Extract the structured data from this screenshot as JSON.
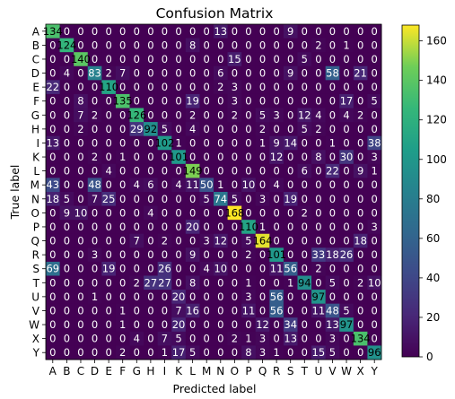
{
  "chart_data": {
    "type": "heatmap",
    "title": "Confusion Matrix",
    "xlabel": "Predicted label",
    "ylabel": "True label",
    "labels": [
      "A",
      "B",
      "C",
      "D",
      "E",
      "F",
      "G",
      "H",
      "I",
      "K",
      "L",
      "M",
      "N",
      "O",
      "P",
      "Q",
      "R",
      "S",
      "T",
      "U",
      "V",
      "W",
      "X",
      "Y"
    ],
    "colormap": "viridis",
    "colorbar": {
      "min": 0,
      "max": 168,
      "ticks": [
        0,
        20,
        40,
        60,
        80,
        100,
        120,
        140,
        160
      ]
    },
    "matrix": [
      [
        134,
        0,
        0,
        0,
        0,
        0,
        0,
        0,
        0,
        0,
        0,
        0,
        13,
        0,
        0,
        0,
        0,
        9,
        0,
        0,
        0,
        0,
        0,
        0
      ],
      [
        0,
        124,
        0,
        0,
        0,
        0,
        0,
        0,
        0,
        0,
        8,
        0,
        0,
        0,
        0,
        0,
        0,
        0,
        0,
        2,
        0,
        1,
        0,
        0
      ],
      [
        0,
        0,
        140,
        0,
        0,
        0,
        0,
        0,
        0,
        0,
        0,
        0,
        0,
        15,
        0,
        0,
        0,
        0,
        5,
        0,
        0,
        0,
        0,
        0
      ],
      [
        0,
        4,
        0,
        83,
        2,
        7,
        0,
        0,
        0,
        0,
        0,
        0,
        6,
        0,
        0,
        0,
        0,
        9,
        0,
        0,
        58,
        0,
        21,
        0
      ],
      [
        22,
        0,
        0,
        0,
        110,
        0,
        0,
        0,
        0,
        0,
        0,
        0,
        2,
        3,
        0,
        0,
        0,
        0,
        0,
        0,
        0,
        0,
        0,
        0
      ],
      [
        0,
        0,
        8,
        0,
        0,
        135,
        0,
        0,
        0,
        0,
        19,
        0,
        0,
        3,
        0,
        0,
        0,
        0,
        0,
        0,
        0,
        17,
        0,
        5
      ],
      [
        0,
        0,
        7,
        2,
        0,
        0,
        126,
        0,
        0,
        0,
        2,
        0,
        0,
        2,
        0,
        5,
        3,
        0,
        12,
        4,
        0,
        4,
        2,
        0
      ],
      [
        0,
        0,
        2,
        0,
        0,
        0,
        29,
        92,
        5,
        0,
        4,
        0,
        0,
        0,
        0,
        2,
        0,
        0,
        5,
        2,
        0,
        0,
        0,
        0
      ],
      [
        13,
        0,
        0,
        0,
        0,
        0,
        0,
        0,
        102,
        1,
        0,
        0,
        0,
        0,
        0,
        1,
        9,
        14,
        0,
        0,
        1,
        0,
        0,
        38
      ],
      [
        0,
        0,
        0,
        2,
        0,
        1,
        0,
        0,
        0,
        101,
        0,
        0,
        0,
        0,
        0,
        0,
        12,
        0,
        0,
        8,
        0,
        30,
        0,
        3
      ],
      [
        0,
        0,
        0,
        0,
        4,
        0,
        0,
        0,
        0,
        0,
        149,
        0,
        0,
        0,
        0,
        0,
        0,
        0,
        6,
        0,
        22,
        0,
        9,
        1
      ],
      [
        43,
        0,
        0,
        48,
        0,
        0,
        4,
        6,
        0,
        4,
        11,
        50,
        1,
        0,
        10,
        0,
        4,
        0,
        0,
        0,
        0,
        0,
        0,
        0
      ],
      [
        18,
        5,
        0,
        7,
        25,
        0,
        0,
        0,
        0,
        0,
        0,
        5,
        74,
        5,
        0,
        3,
        0,
        19,
        0,
        0,
        0,
        0,
        0,
        0
      ],
      [
        0,
        9,
        10,
        0,
        0,
        0,
        0,
        4,
        0,
        0,
        0,
        0,
        0,
        168,
        0,
        0,
        0,
        0,
        2,
        0,
        0,
        0,
        0,
        0
      ],
      [
        0,
        0,
        0,
        0,
        0,
        0,
        0,
        0,
        0,
        0,
        20,
        0,
        0,
        0,
        110,
        1,
        0,
        0,
        0,
        0,
        0,
        0,
        0,
        3
      ],
      [
        0,
        0,
        0,
        0,
        0,
        0,
        7,
        0,
        2,
        0,
        0,
        3,
        12,
        0,
        5,
        164,
        0,
        0,
        0,
        0,
        0,
        0,
        18,
        0
      ],
      [
        0,
        0,
        0,
        3,
        0,
        0,
        0,
        0,
        0,
        0,
        9,
        0,
        0,
        0,
        2,
        0,
        101,
        0,
        0,
        33,
        18,
        26,
        0,
        0
      ],
      [
        69,
        0,
        0,
        0,
        19,
        0,
        0,
        0,
        26,
        0,
        0,
        4,
        10,
        0,
        0,
        0,
        11,
        56,
        0,
        2,
        0,
        0,
        0,
        0
      ],
      [
        0,
        0,
        0,
        0,
        0,
        0,
        2,
        27,
        27,
        0,
        8,
        0,
        0,
        0,
        1,
        0,
        0,
        1,
        94,
        0,
        5,
        0,
        2,
        10
      ],
      [
        0,
        0,
        0,
        1,
        0,
        0,
        0,
        0,
        0,
        20,
        0,
        0,
        0,
        0,
        3,
        0,
        56,
        0,
        0,
        97,
        0,
        0,
        0,
        0
      ],
      [
        0,
        0,
        0,
        0,
        0,
        1,
        0,
        0,
        0,
        7,
        16,
        0,
        0,
        0,
        11,
        0,
        56,
        0,
        0,
        11,
        48,
        5,
        0,
        0
      ],
      [
        0,
        0,
        0,
        0,
        0,
        1,
        0,
        0,
        0,
        20,
        0,
        0,
        0,
        0,
        0,
        12,
        0,
        34,
        0,
        0,
        13,
        97,
        0,
        0
      ],
      [
        0,
        0,
        0,
        0,
        0,
        0,
        4,
        0,
        7,
        5,
        0,
        0,
        0,
        2,
        1,
        3,
        0,
        13,
        0,
        0,
        3,
        0,
        134,
        0
      ],
      [
        0,
        0,
        0,
        0,
        0,
        2,
        0,
        0,
        1,
        17,
        5,
        0,
        0,
        0,
        8,
        3,
        1,
        0,
        0,
        15,
        5,
        0,
        0,
        96
      ]
    ]
  }
}
